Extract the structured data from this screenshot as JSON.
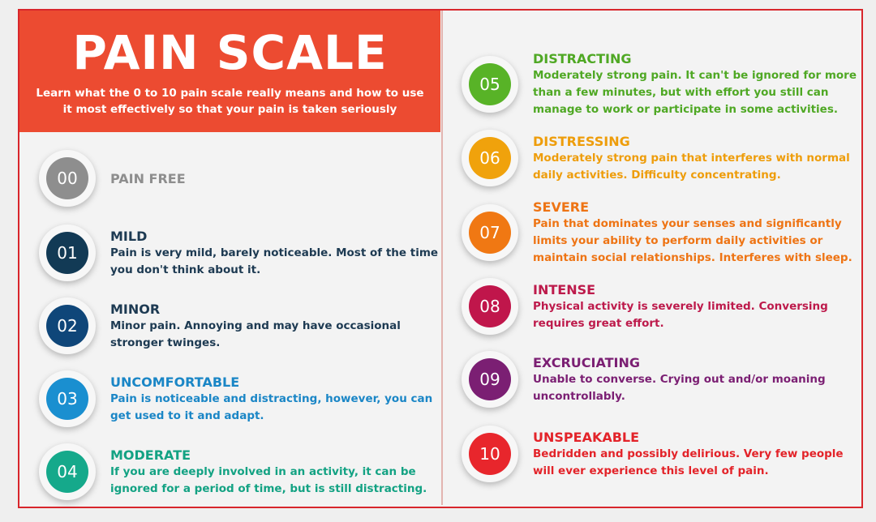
{
  "header": {
    "title": "PAIN SCALE",
    "subtitle": [
      "Learn what the 0 to 10 pain scale really means and how to use",
      "it most effectively so that your pain is taken seriously"
    ]
  },
  "items": [
    {
      "number": "00",
      "title": "PAIN FREE",
      "lines": [],
      "color": "#8e8e8e",
      "text_color": "#8e8e8e"
    },
    {
      "number": "01",
      "title": "MILD",
      "lines": [
        "Pain is very mild, barely noticeable. Most of the time",
        "you don't think about it."
      ],
      "color": "#123a55",
      "text_color": "#1d3a52"
    },
    {
      "number": "02",
      "title": "MINOR",
      "lines": [
        "Minor pain. Annoying and may have occasional",
        "stronger twinges."
      ],
      "color": "#0f4679",
      "text_color": "#1d3a52"
    },
    {
      "number": "03",
      "title": "UNCOMFORTABLE",
      "lines": [
        "Pain is noticeable and distracting, however, you can",
        "get used to it and adapt."
      ],
      "color": "#1a8fd0",
      "text_color": "#1a86c6"
    },
    {
      "number": "04",
      "title": "MODERATE",
      "lines": [
        "If you are deeply involved in an activity, it can be",
        "ignored for a period of time, but is still distracting."
      ],
      "color": "#15a98b",
      "text_color": "#13a283"
    },
    {
      "number": "05",
      "title": "DISTRACTING",
      "lines": [
        "Moderately strong pain. It can't be ignored for more",
        "than a few minutes, but with effort you still can",
        "manage to work or participate in some activities."
      ],
      "color": "#58b327",
      "text_color": "#4fa824"
    },
    {
      "number": "06",
      "title": "DISTRESSING",
      "lines": [
        "Moderately strong pain that interferes with normal",
        "daily activities. Difficulty concentrating."
      ],
      "color": "#f0a20c",
      "text_color": "#ee9d0b"
    },
    {
      "number": "07",
      "title": "SEVERE",
      "lines": [
        "Pain that dominates your senses and significantly",
        "limits your ability to perform daily activities or",
        "maintain social relationships. Interferes with sleep."
      ],
      "color": "#f07813",
      "text_color": "#ee7414"
    },
    {
      "number": "08",
      "title": "INTENSE",
      "lines": [
        "Physical activity is severely limited. Conversing",
        "requires great effort."
      ],
      "color": "#c0164b",
      "text_color": "#bd1a4b"
    },
    {
      "number": "09",
      "title": "EXCRUCIATING",
      "lines": [
        "Unable to converse. Crying out and/or moaning",
        "uncontrollably."
      ],
      "color": "#7b1f73",
      "text_color": "#7b1f73"
    },
    {
      "number": "10",
      "title": "UNSPEAKABLE",
      "lines": [
        "Bedridden and possibly delirious. Very few people",
        "will ever experience this level of pain."
      ],
      "color": "#e8262c",
      "text_color": "#e32329"
    }
  ]
}
